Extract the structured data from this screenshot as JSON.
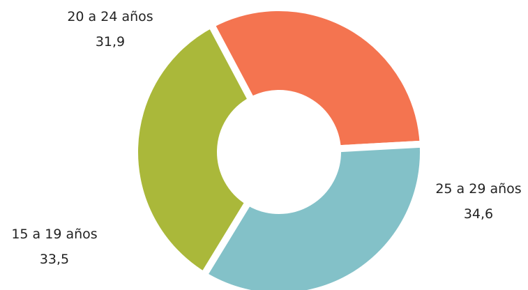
{
  "chart_data": {
    "type": "pie",
    "variant": "donut",
    "title": "",
    "slices": [
      {
        "label": "20 a 24 años",
        "value": 31.9,
        "value_label": "31,9",
        "color": "#f47450"
      },
      {
        "label": "25 a 29 años",
        "value": 34.6,
        "value_label": "34,6",
        "color": "#83c1c8"
      },
      {
        "label": "15 a 19 años",
        "value": 33.5,
        "value_label": "33,5",
        "color": "#aab83a"
      }
    ],
    "legend": "none"
  }
}
